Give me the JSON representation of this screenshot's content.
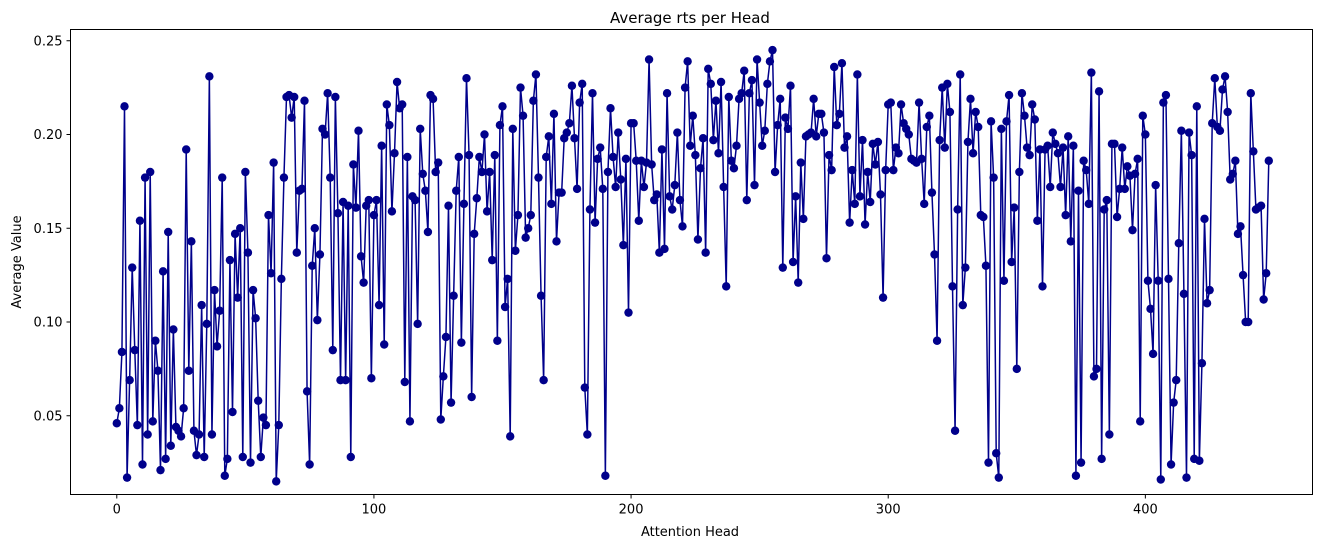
{
  "chart_data": {
    "type": "line",
    "title": "Average rts per Head",
    "xlabel": "Attention Head",
    "ylabel": "Average Value",
    "xlim": [
      -18,
      465
    ],
    "ylim": [
      0.008,
      0.256
    ],
    "xticks": [
      0,
      100,
      200,
      300,
      400
    ],
    "yticks": [
      0.05,
      0.1,
      0.15,
      0.2,
      0.25
    ],
    "xtick_labels": [
      "0",
      "100",
      "200",
      "300",
      "400"
    ],
    "ytick_labels": [
      "0.05",
      "0.10",
      "0.15",
      "0.20",
      "0.25"
    ],
    "grid": false,
    "legend": "none",
    "colors": {
      "series": "#00008B",
      "axes": "#000000",
      "background": "#ffffff"
    },
    "series": [
      {
        "marker": "circle",
        "values": [
          0.046,
          0.054,
          0.084,
          0.215,
          0.017,
          0.069,
          0.129,
          0.085,
          0.045,
          0.154,
          0.024,
          0.177,
          0.04,
          0.18,
          0.047,
          0.09,
          0.074,
          0.021,
          0.127,
          0.027,
          0.148,
          0.034,
          0.096,
          0.044,
          0.042,
          0.039,
          0.054,
          0.192,
          0.074,
          0.143,
          0.042,
          0.029,
          0.04,
          0.109,
          0.028,
          0.099,
          0.231,
          0.04,
          0.117,
          0.087,
          0.106,
          0.177,
          0.018,
          0.027,
          0.133,
          0.052,
          0.147,
          0.113,
          0.15,
          0.028,
          0.18,
          0.137,
          0.025,
          0.117,
          0.102,
          0.058,
          0.028,
          0.049,
          0.045,
          0.157,
          0.126,
          0.185,
          0.015,
          0.045,
          0.123,
          0.177,
          0.22,
          0.221,
          0.209,
          0.22,
          0.137,
          0.17,
          0.171,
          0.218,
          0.063,
          0.024,
          0.13,
          0.15,
          0.101,
          0.136,
          0.203,
          0.2,
          0.222,
          0.177,
          0.085,
          0.22,
          0.158,
          0.069,
          0.164,
          0.069,
          0.162,
          0.028,
          0.184,
          0.161,
          0.202,
          0.135,
          0.121,
          0.162,
          0.165,
          0.07,
          0.157,
          0.165,
          0.109,
          0.194,
          0.088,
          0.216,
          0.205,
          0.159,
          0.19,
          0.228,
          0.214,
          0.216,
          0.068,
          0.188,
          0.047,
          0.167,
          0.165,
          0.099,
          0.203,
          0.179,
          0.17,
          0.148,
          0.221,
          0.219,
          0.18,
          0.185,
          0.048,
          0.071,
          0.092,
          0.162,
          0.057,
          0.114,
          0.17,
          0.188,
          0.089,
          0.163,
          0.23,
          0.189,
          0.06,
          0.147,
          0.166,
          0.188,
          0.18,
          0.2,
          0.159,
          0.18,
          0.133,
          0.189,
          0.09,
          0.205,
          0.215,
          0.108,
          0.123,
          0.039,
          0.203,
          0.138,
          0.157,
          0.225,
          0.21,
          0.145,
          0.15,
          0.157,
          0.218,
          0.232,
          0.177,
          0.114,
          0.069,
          0.188,
          0.199,
          0.163,
          0.211,
          0.143,
          0.169,
          0.169,
          0.198,
          0.201,
          0.206,
          0.226,
          0.198,
          0.171,
          0.217,
          0.227,
          0.065,
          0.04,
          0.16,
          0.222,
          0.153,
          0.187,
          0.193,
          0.171,
          0.018,
          0.18,
          0.214,
          0.188,
          0.172,
          0.201,
          0.176,
          0.141,
          0.187,
          0.105,
          0.206,
          0.206,
          0.186,
          0.154,
          0.186,
          0.172,
          0.185,
          0.24,
          0.184,
          0.165,
          0.168,
          0.137,
          0.192,
          0.139,
          0.222,
          0.167,
          0.16,
          0.173,
          0.201,
          0.165,
          0.151,
          0.225,
          0.239,
          0.194,
          0.21,
          0.189,
          0.144,
          0.182,
          0.198,
          0.137,
          0.235,
          0.227,
          0.197,
          0.218,
          0.19,
          0.228,
          0.172,
          0.119,
          0.22,
          0.186,
          0.182,
          0.194,
          0.219,
          0.222,
          0.234,
          0.165,
          0.222,
          0.229,
          0.173,
          0.24,
          0.217,
          0.194,
          0.202,
          0.227,
          0.239,
          0.245,
          0.18,
          0.205,
          0.219,
          0.129,
          0.209,
          0.203,
          0.226,
          0.132,
          0.167,
          0.121,
          0.185,
          0.155,
          0.199,
          0.2,
          0.201,
          0.219,
          0.199,
          0.211,
          0.211,
          0.201,
          0.134,
          0.189,
          0.181,
          0.236,
          0.205,
          0.211,
          0.238,
          0.193,
          0.199,
          0.153,
          0.181,
          0.163,
          0.232,
          0.167,
          0.197,
          0.152,
          0.18,
          0.164,
          0.195,
          0.184,
          0.196,
          0.168,
          0.113,
          0.181,
          0.216,
          0.217,
          0.181,
          0.193,
          0.19,
          0.216,
          0.206,
          0.203,
          0.2,
          0.187,
          0.186,
          0.185,
          0.217,
          0.187,
          0.163,
          0.204,
          0.21,
          0.169,
          0.136,
          0.09,
          0.197,
          0.225,
          0.193,
          0.227,
          0.212,
          0.119,
          0.042,
          0.16,
          0.232,
          0.109,
          0.129,
          0.196,
          0.219,
          0.19,
          0.212,
          0.204,
          0.157,
          0.156,
          0.13,
          0.025,
          0.207,
          0.177,
          0.03,
          0.017,
          0.203,
          0.122,
          0.207,
          0.221,
          0.132,
          0.161,
          0.075,
          0.18,
          0.222,
          0.21,
          0.193,
          0.189,
          0.216,
          0.208,
          0.154,
          0.192,
          0.119,
          0.192,
          0.194,
          0.172,
          0.201,
          0.195,
          0.19,
          0.172,
          0.193,
          0.157,
          0.199,
          0.143,
          0.194,
          0.018,
          0.17,
          0.025,
          0.186,
          0.181,
          0.163,
          0.233,
          0.071,
          0.075,
          0.223,
          0.027,
          0.16,
          0.165,
          0.04,
          0.195,
          0.195,
          0.156,
          0.171,
          0.193,
          0.171,
          0.183,
          0.178,
          0.149,
          0.179,
          0.187,
          0.047,
          0.21,
          0.2,
          0.122,
          0.107,
          0.083,
          0.173,
          0.122,
          0.016,
          0.217,
          0.221,
          0.123,
          0.024,
          0.057,
          0.069,
          0.142,
          0.202,
          0.115,
          0.017,
          0.201,
          0.189,
          0.027,
          0.215,
          0.026,
          0.078,
          0.155,
          0.11,
          0.117,
          0.206,
          0.23,
          0.204,
          0.202,
          0.224,
          0.231,
          0.212,
          0.176,
          0.179,
          0.186,
          0.147,
          0.151,
          0.125,
          0.1,
          0.1,
          0.222,
          0.191,
          0.16,
          0.161,
          0.162,
          0.112,
          0.126,
          0.186
        ]
      }
    ]
  }
}
